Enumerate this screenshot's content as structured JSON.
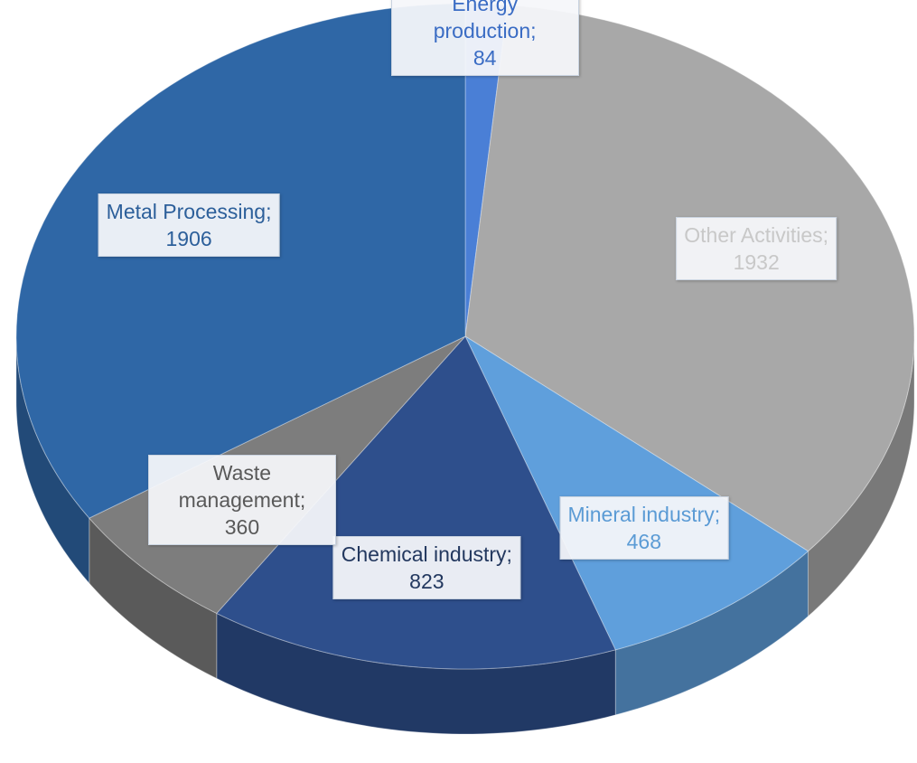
{
  "chart_data": {
    "type": "pie",
    "categories": [
      "Energy production;",
      "Other Activities;",
      "Mineral industry;",
      "Chemical industry;",
      "Waste management;",
      "Metal Processing;"
    ],
    "values": [
      84,
      1932,
      468,
      823,
      360,
      1906
    ],
    "colors": [
      "#4a7fd6",
      "#a8a8a8",
      "#5f9fdc",
      "#2e4f8c",
      "#7d7d7d",
      "#2f67a6"
    ],
    "label_colors": [
      "#3a6cc4",
      "#c8c8c8",
      "#5b9bd5",
      "#23385f",
      "#595959",
      "#2c5f9a"
    ]
  }
}
